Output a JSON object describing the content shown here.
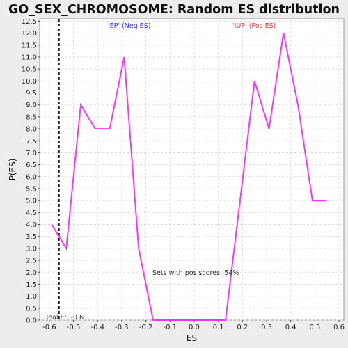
{
  "chart_data": {
    "type": "line",
    "title": "GO_SEX_CHROMOSOME: Random ES distribution",
    "xlabel": "ES",
    "ylabel": "P(ES)",
    "xlim": [
      -0.64,
      0.62
    ],
    "ylim": [
      0,
      12.6
    ],
    "xticks": [
      -0.6,
      -0.5,
      -0.4,
      -0.3,
      -0.2,
      -0.1,
      0.0,
      0.1,
      0.2,
      0.3,
      0.4,
      0.5,
      0.6
    ],
    "xtick_labels": [
      "-0.6",
      "-0.5",
      "-0.4",
      "-0.3",
      "-0.2",
      "-0.1",
      "0.0",
      "0.1",
      "0.2",
      "0.3",
      "0.4",
      "0.5",
      "0.6"
    ],
    "yticks": [
      0.0,
      0.5,
      1.0,
      1.5,
      2.0,
      2.5,
      3.0,
      3.5,
      4.0,
      4.5,
      5.0,
      5.5,
      6.0,
      6.5,
      7.0,
      7.5,
      8.0,
      8.5,
      9.0,
      9.5,
      10.0,
      10.5,
      11.0,
      11.5,
      12.0,
      12.5
    ],
    "ytick_labels": [
      "0.0",
      "0.5",
      "1.0",
      "1.5",
      "2.0",
      "2.5",
      "3.0",
      "3.5",
      "4.0",
      "4.5",
      "5.0",
      "5.5",
      "6.0",
      "6.5",
      "7.0",
      "7.5",
      "8.0",
      "8.5",
      "9.0",
      "9.5",
      "10.0",
      "10.5",
      "11.0",
      "11.5",
      "12.0",
      "12.5"
    ],
    "grid": true,
    "series": [
      {
        "x": [
          -0.59,
          -0.53,
          -0.47,
          -0.41,
          -0.35,
          -0.29,
          -0.23,
          -0.17,
          -0.11,
          -0.05,
          0.01,
          0.07,
          0.13,
          0.19,
          0.25,
          0.31,
          0.37,
          0.43,
          0.49,
          0.55
        ],
        "y": [
          4.0,
          3.0,
          9.0,
          8.0,
          8.0,
          11.0,
          3.0,
          0.0,
          0.0,
          0.0,
          0.0,
          0.0,
          0.0,
          5.0,
          10.0,
          8.0,
          12.0,
          9.0,
          5.0,
          5.0
        ]
      }
    ],
    "real_es_line": {
      "x": -0.56
    },
    "annotations": {
      "neg_label": "'EP' (Neg ES)",
      "pos_label": "'IUP' (Pos ES)",
      "pos_scores": "Sets with pos scores: 54%",
      "real_es": "Real ES -0.6"
    },
    "colors": {
      "series": "#ff33ff",
      "neg_label": "#3333ff",
      "pos_label": "#ff3333",
      "grid": "#dddddd",
      "plot_bg": "#ffffff",
      "page_bg": "#ededed"
    }
  }
}
